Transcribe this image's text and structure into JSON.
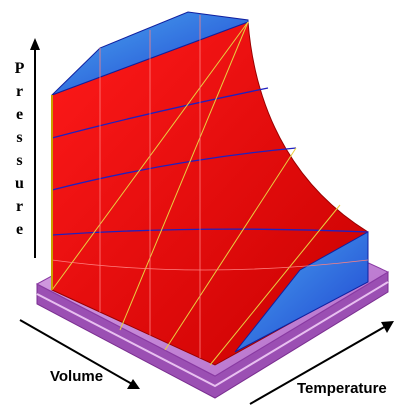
{
  "labels": {
    "pressure": "Pressure",
    "volume": "Volume",
    "temperature": "Temperature"
  }
}
